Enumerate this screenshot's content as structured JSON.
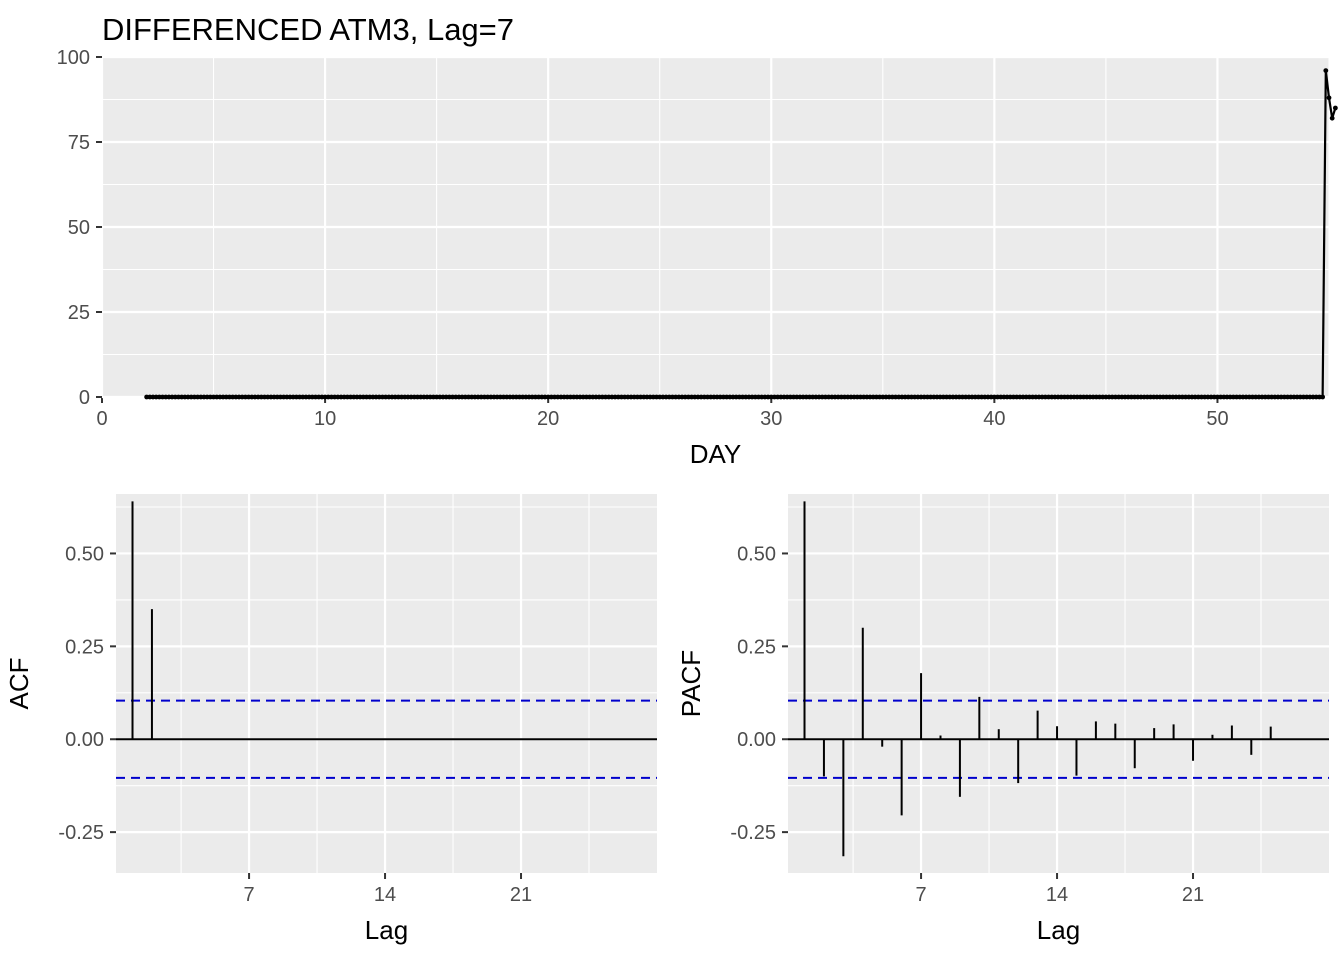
{
  "colors": {
    "panel": "#ebebeb",
    "grid": "#ffffff",
    "series": "#000000",
    "ci": "#0000cc",
    "tick_label": "#4d4d4d"
  },
  "chart_data": [
    {
      "type": "line",
      "title": "DIFFERENCED ATM3, Lag=7",
      "xlabel": "DAY",
      "ylabel": "",
      "xlim": [
        0,
        55
      ],
      "ylim": [
        0,
        100
      ],
      "x_ticks": [
        "0",
        "10",
        "20",
        "30",
        "40",
        "50"
      ],
      "x_tick_values": [
        0,
        10,
        20,
        30,
        40,
        50
      ],
      "y_ticks": [
        "0",
        "25",
        "50",
        "75",
        "100"
      ],
      "y_tick_values": [
        0,
        25,
        50,
        75,
        100
      ],
      "grid": true,
      "x_start": 2.0,
      "x_step": 0.142857,
      "y": [
        0,
        0,
        0,
        0,
        0,
        0,
        0,
        0,
        0,
        0,
        0,
        0,
        0,
        0,
        0,
        0,
        0,
        0,
        0,
        0,
        0,
        0,
        0,
        0,
        0,
        0,
        0,
        0,
        0,
        0,
        0,
        0,
        0,
        0,
        0,
        0,
        0,
        0,
        0,
        0,
        0,
        0,
        0,
        0,
        0,
        0,
        0,
        0,
        0,
        0,
        0,
        0,
        0,
        0,
        0,
        0,
        0,
        0,
        0,
        0,
        0,
        0,
        0,
        0,
        0,
        0,
        0,
        0,
        0,
        0,
        0,
        0,
        0,
        0,
        0,
        0,
        0,
        0,
        0,
        0,
        0,
        0,
        0,
        0,
        0,
        0,
        0,
        0,
        0,
        0,
        0,
        0,
        0,
        0,
        0,
        0,
        0,
        0,
        0,
        0,
        0,
        0,
        0,
        0,
        0,
        0,
        0,
        0,
        0,
        0,
        0,
        0,
        0,
        0,
        0,
        0,
        0,
        0,
        0,
        0,
        0,
        0,
        0,
        0,
        0,
        0,
        0,
        0,
        0,
        0,
        0,
        0,
        0,
        0,
        0,
        0,
        0,
        0,
        0,
        0,
        0,
        0,
        0,
        0,
        0,
        0,
        0,
        0,
        0,
        0,
        0,
        0,
        0,
        0,
        0,
        0,
        0,
        0,
        0,
        0,
        0,
        0,
        0,
        0,
        0,
        0,
        0,
        0,
        0,
        0,
        0,
        0,
        0,
        0,
        0,
        0,
        0,
        0,
        0,
        0,
        0,
        0,
        0,
        0,
        0,
        0,
        0,
        0,
        0,
        0,
        0,
        0,
        0,
        0,
        0,
        0,
        0,
        0,
        0,
        0,
        0,
        0,
        0,
        0,
        0,
        0,
        0,
        0,
        0,
        0,
        0,
        0,
        0,
        0,
        0,
        0,
        0,
        0,
        0,
        0,
        0,
        0,
        0,
        0,
        0,
        0,
        0,
        0,
        0,
        0,
        0,
        0,
        0,
        0,
        0,
        0,
        0,
        0,
        0,
        0,
        0,
        0,
        0,
        0,
        0,
        0,
        0,
        0,
        0,
        0,
        0,
        0,
        0,
        0,
        0,
        0,
        0,
        0,
        0,
        0,
        0,
        0,
        0,
        0,
        0,
        0,
        0,
        0,
        0,
        0,
        0,
        0,
        0,
        0,
        0,
        0,
        0,
        0,
        0,
        0,
        0,
        0,
        0,
        0,
        0,
        0,
        0,
        0,
        0,
        0,
        0,
        0,
        0,
        0,
        0,
        0,
        0,
        0,
        0,
        0,
        0,
        0,
        0,
        0,
        0,
        0,
        0,
        0,
        0,
        0,
        0,
        0,
        0,
        0,
        0,
        0,
        0,
        0,
        0,
        0,
        0,
        0,
        0,
        0,
        0,
        0,
        0,
        0,
        0,
        0,
        0,
        0,
        0,
        0,
        0,
        0,
        0,
        0,
        0,
        0,
        0,
        0,
        0,
        0,
        0,
        0,
        0,
        0,
        0,
        0,
        0,
        0,
        0,
        0,
        0,
        0,
        0,
        0,
        0,
        0,
        0,
        0,
        0,
        0,
        0,
        0,
        0,
        0,
        0,
        0,
        96,
        88,
        82,
        85
      ]
    },
    {
      "type": "bar",
      "title": "",
      "xlabel": "Lag",
      "ylabel": "ACF",
      "xlim": [
        0.15,
        28
      ],
      "ylim": [
        -0.36,
        0.66
      ],
      "x_ticks": [
        "7",
        "14",
        "21"
      ],
      "x_tick_values": [
        7,
        14,
        21
      ],
      "y_ticks": [
        "-0.25",
        "0.00",
        "0.25",
        "0.50"
      ],
      "y_tick_values": [
        -0.25,
        0,
        0.25,
        0.5
      ],
      "grid": true,
      "ci": 0.104,
      "lags": [
        1,
        2,
        3,
        4,
        5,
        6,
        7,
        8,
        9,
        10,
        11,
        12,
        13,
        14,
        15,
        16,
        17,
        18,
        19,
        20,
        21,
        22,
        23,
        24,
        25
      ],
      "values": [
        0.64,
        0.35,
        0,
        0,
        0,
        0,
        0,
        0,
        0,
        0,
        0,
        0,
        0,
        0,
        0,
        0,
        0,
        0,
        0,
        0,
        0,
        0,
        0,
        0,
        0
      ]
    },
    {
      "type": "bar",
      "title": "",
      "xlabel": "Lag",
      "ylabel": "PACF",
      "xlim": [
        0.15,
        28
      ],
      "ylim": [
        -0.36,
        0.66
      ],
      "x_ticks": [
        "7",
        "14",
        "21"
      ],
      "x_tick_values": [
        7,
        14,
        21
      ],
      "y_ticks": [
        "-0.25",
        "0.00",
        "0.25",
        "0.50"
      ],
      "y_tick_values": [
        -0.25,
        0,
        0.25,
        0.5
      ],
      "grid": true,
      "ci": 0.104,
      "lags": [
        1,
        2,
        3,
        4,
        5,
        6,
        7,
        8,
        9,
        10,
        11,
        12,
        13,
        14,
        15,
        16,
        17,
        18,
        19,
        20,
        21,
        22,
        23,
        24,
        25
      ],
      "values": [
        0.64,
        -0.1,
        -0.315,
        0.3,
        -0.02,
        -0.205,
        0.178,
        0.01,
        -0.155,
        0.114,
        0.027,
        -0.118,
        0.077,
        0.035,
        -0.098,
        0.048,
        0.042,
        -0.078,
        0.03,
        0.04,
        -0.058,
        0.012,
        0.037,
        -0.042,
        0.034
      ]
    }
  ]
}
